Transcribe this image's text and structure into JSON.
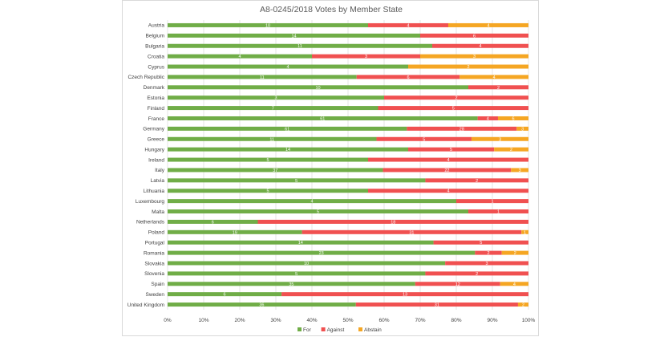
{
  "chart_data": {
    "type": "bar",
    "orientation": "horizontal",
    "stacked": "percent",
    "title": "A8-0245/2018 Votes by Member State",
    "xlim": [
      0,
      100
    ],
    "x_ticks": [
      "0%",
      "10%",
      "20%",
      "30%",
      "40%",
      "50%",
      "60%",
      "70%",
      "80%",
      "90%",
      "100%"
    ],
    "grid": true,
    "legend_position": "bottom",
    "categories": [
      "Austria",
      "Belgium",
      "Bulgaria",
      "Croatia",
      "Cyprus",
      "Czech Republic",
      "Denmark",
      "Estonia",
      "Finland",
      "France",
      "Germany",
      "Greece",
      "Hungary",
      "Ireland",
      "Italy",
      "Latvia",
      "Lithuania",
      "Luxembourg",
      "Malta",
      "Netherlands",
      "Poland",
      "Portugal",
      "Romania",
      "Slovakia",
      "Slovenia",
      "Spain",
      "Sweden",
      "United Kingdom"
    ],
    "series": [
      {
        "name": "For",
        "color": "#70ad47",
        "values": [
          10,
          14,
          11,
          4,
          4,
          11,
          10,
          3,
          7,
          61,
          61,
          11,
          14,
          5,
          37,
          5,
          5,
          4,
          5,
          6,
          19,
          14,
          23,
          10,
          5,
          35,
          6,
          36
        ]
      },
      {
        "name": "Against",
        "color": "#f05050",
        "values": [
          4,
          6,
          4,
          3,
          0,
          6,
          2,
          2,
          5,
          4,
          28,
          5,
          5,
          4,
          22,
          2,
          4,
          1,
          1,
          18,
          31,
          5,
          2,
          3,
          2,
          12,
          13,
          31
        ]
      },
      {
        "name": "Abstain",
        "color": "#f5a623",
        "values": [
          4,
          0,
          0,
          3,
          2,
          4,
          0,
          0,
          0,
          6,
          3,
          3,
          2,
          0,
          3,
          0,
          0,
          0,
          0,
          0,
          1,
          0,
          2,
          0,
          0,
          4,
          0,
          2
        ]
      }
    ]
  }
}
